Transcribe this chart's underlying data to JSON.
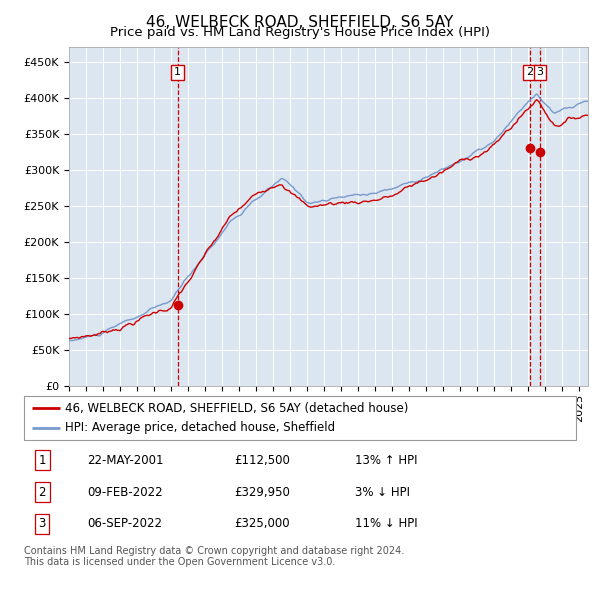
{
  "title": "46, WELBECK ROAD, SHEFFIELD, S6 5AY",
  "subtitle": "Price paid vs. HM Land Registry's House Price Index (HPI)",
  "ylabel_ticks": [
    "£0",
    "£50K",
    "£100K",
    "£150K",
    "£200K",
    "£250K",
    "£300K",
    "£350K",
    "£400K",
    "£450K"
  ],
  "ytick_vals": [
    0,
    50000,
    100000,
    150000,
    200000,
    250000,
    300000,
    350000,
    400000,
    450000
  ],
  "ylim": [
    0,
    470000
  ],
  "xlim_start": 1995.0,
  "xlim_end": 2025.5,
  "red_line_color": "#cc0000",
  "blue_line_color": "#7799cc",
  "plot_bg": "#dce6f0",
  "vline_color": "#cc0000",
  "sale1_x": 2001.38,
  "sale1_y": 112500,
  "sale2_x": 2022.08,
  "sale2_y": 329950,
  "sale3_x": 2022.67,
  "sale3_y": 325000,
  "legend_line1": "46, WELBECK ROAD, SHEFFIELD, S6 5AY (detached house)",
  "legend_line2": "HPI: Average price, detached house, Sheffield",
  "table_rows": [
    [
      "1",
      "22-MAY-2001",
      "£112,500",
      "13% ↑ HPI"
    ],
    [
      "2",
      "09-FEB-2022",
      "£329,950",
      "3% ↓ HPI"
    ],
    [
      "3",
      "06-SEP-2022",
      "£325,000",
      "11% ↓ HPI"
    ]
  ],
  "footer": "Contains HM Land Registry data © Crown copyright and database right 2024.\nThis data is licensed under the Open Government Licence v3.0.",
  "title_fontsize": 11,
  "subtitle_fontsize": 9.5,
  "tick_fontsize": 8,
  "legend_fontsize": 8.5,
  "table_fontsize": 8.5,
  "footer_fontsize": 7
}
